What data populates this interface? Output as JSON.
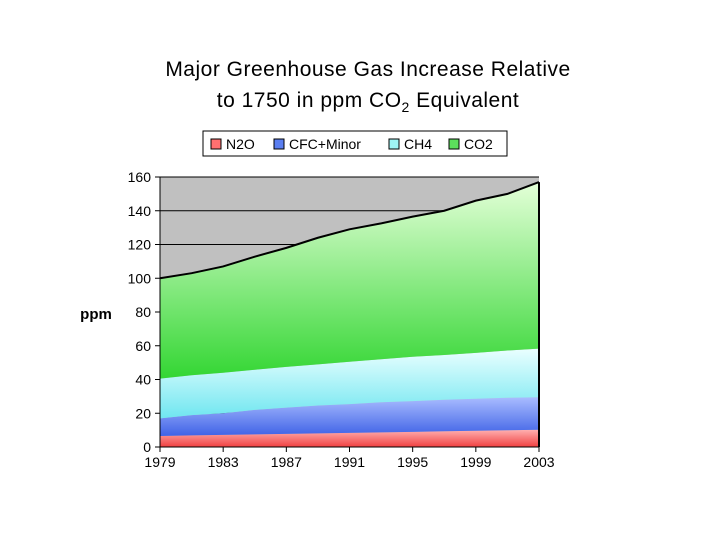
{
  "chart_data": {
    "type": "area",
    "stacked": true,
    "title_line1": "Major Greenhouse Gas Increase Relative",
    "title_line2_prefix": "to 1750 in ppm CO",
    "title_line2_sub": "2",
    "title_line2_suffix": " Equivalent",
    "ylabel": "ppm",
    "ylim": [
      0,
      160
    ],
    "yticks": [
      "0",
      "20",
      "40",
      "60",
      "80",
      "100",
      "120",
      "140",
      "160"
    ],
    "xlim": [
      1979,
      2003
    ],
    "xticks": [
      "1979",
      "1983",
      "1987",
      "1991",
      "1995",
      "1999",
      "2003"
    ],
    "grid": "horizontal",
    "legend_position": "top",
    "x": [
      1979,
      1981,
      1983,
      1985,
      1987,
      1989,
      1991,
      1993,
      1995,
      1997,
      1999,
      2001,
      2003
    ],
    "series": [
      {
        "name": "N2O",
        "color": "#ff7070",
        "values": [
          6.5,
          6.9,
          7.2,
          7.5,
          7.8,
          8.1,
          8.4,
          8.7,
          9.0,
          9.3,
          9.6,
          9.9,
          10.2
        ]
      },
      {
        "name": "CFC+Minor",
        "color": "#5a7ef0",
        "values": [
          10.5,
          12.0,
          12.8,
          14.5,
          15.5,
          16.5,
          17.0,
          17.8,
          18.2,
          18.7,
          19.0,
          19.3,
          19.3
        ]
      },
      {
        "name": "CH4",
        "color": "#9ff4f4",
        "values": [
          23.5,
          23.6,
          24.0,
          23.8,
          24.2,
          24.4,
          25.1,
          25.5,
          26.3,
          26.5,
          27.2,
          28.0,
          28.8
        ]
      },
      {
        "name": "CO2",
        "color": "#5ce05c",
        "values": [
          59.5,
          60.5,
          63.0,
          67.0,
          70.5,
          75.0,
          78.5,
          80.5,
          83.0,
          85.5,
          90.2,
          92.8,
          98.7
        ]
      }
    ],
    "colors": {
      "plot_background": "#c0c0c0",
      "gridline": "#000000",
      "top_edge": "#000000"
    }
  }
}
